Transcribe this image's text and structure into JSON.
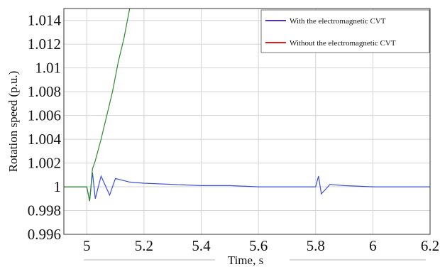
{
  "chart_data": {
    "type": "line",
    "title": "",
    "xlabel": "Time, s",
    "ylabel": "Rotation speed (p.u.)",
    "xlim": [
      4.92,
      6.2
    ],
    "ylim": [
      0.996,
      1.015
    ],
    "x_ticks": [
      5,
      5.2,
      5.4,
      5.6,
      5.8,
      6,
      6.2
    ],
    "x_tick_labels": [
      "5",
      "5.2",
      "5.4",
      "5.6",
      "5.8",
      "6",
      "6.2"
    ],
    "y_ticks": [
      0.996,
      0.998,
      1,
      1.002,
      1.004,
      1.006,
      1.008,
      1.01,
      1.012,
      1.014
    ],
    "y_tick_labels": [
      "0.996",
      "0.998",
      "1",
      "1.002",
      "1.004",
      "1.006",
      "1.008",
      "1.01",
      "1.012",
      "1.014"
    ],
    "grid": true,
    "legend_position": "top-right",
    "legend": [
      {
        "label": "With the electromagnetic CVT",
        "color": "#5b2fa8"
      },
      {
        "label": "Without the electromagnetic CVT",
        "color": "#e01b1b"
      }
    ],
    "series": [
      {
        "color": "#3b4fd8",
        "x": [
          4.92,
          5.0,
          5.01,
          5.02,
          5.03,
          5.05,
          5.08,
          5.1,
          5.15,
          5.2,
          5.3,
          5.4,
          5.5,
          5.6,
          5.7,
          5.8,
          5.81,
          5.82,
          5.85,
          5.9,
          6.0,
          6.1,
          6.2
        ],
        "y": [
          1.0,
          1.0,
          0.9988,
          1.0012,
          0.999,
          1.0009,
          0.9993,
          1.0007,
          1.0004,
          1.0003,
          1.0002,
          1.0001,
          1.0001,
          1.0,
          1.0,
          1.0,
          1.0009,
          0.9994,
          1.0002,
          1.0001,
          1.0,
          1.0,
          1.0
        ]
      },
      {
        "color": "#2e8b2e",
        "x": [
          4.92,
          5.0,
          5.01,
          5.02,
          5.03,
          5.05,
          5.07,
          5.09,
          5.11,
          5.13,
          5.15
        ],
        "y": [
          1.0,
          1.0,
          0.9988,
          1.0015,
          1.0022,
          1.004,
          1.006,
          1.008,
          1.0105,
          1.0125,
          1.015
        ]
      }
    ]
  }
}
